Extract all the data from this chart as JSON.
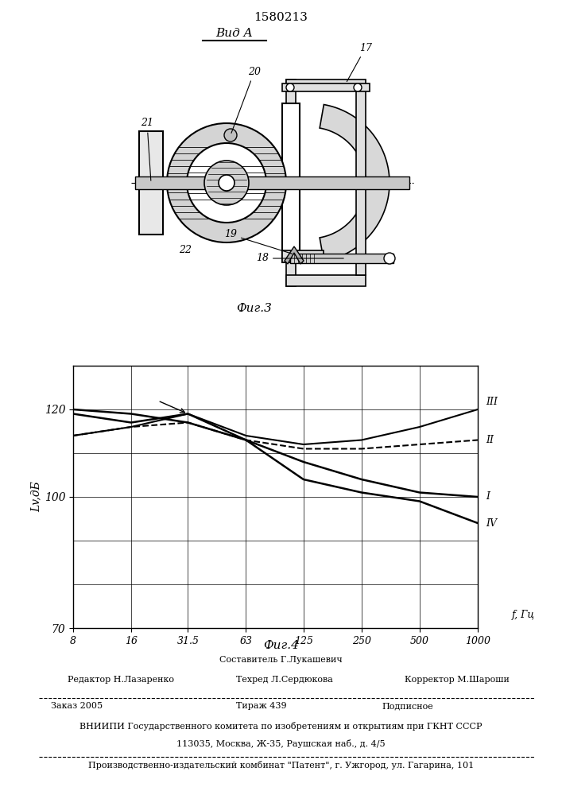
{
  "patent_number": "1580213",
  "fig3_label": "Фиг.3",
  "fig4_label": "Фиг.4",
  "vid_a_label": "Вид A",
  "ylabel": "Lv,дБ",
  "xlabel": "f, Гц",
  "xticks": [
    8,
    16,
    31.5,
    63,
    125,
    250,
    500,
    1000
  ],
  "xtick_labels": [
    "8",
    "16",
    "31.5",
    "63",
    "125",
    "250",
    "500",
    "1000"
  ],
  "ylim": [
    70,
    130
  ],
  "yticks": [
    70,
    100,
    120
  ],
  "curve_I_x": [
    8,
    16,
    31.5,
    63,
    125,
    250,
    500,
    1000
  ],
  "curve_I_y": [
    120,
    119,
    117,
    113,
    108,
    104,
    101,
    100
  ],
  "curve_II_x": [
    8,
    16,
    31.5,
    63,
    125,
    250,
    500,
    1000
  ],
  "curve_II_y": [
    114,
    116,
    117,
    113,
    111,
    111,
    112,
    113
  ],
  "curve_III_x": [
    8,
    16,
    31.5,
    63,
    125,
    250,
    500,
    1000
  ],
  "curve_III_y": [
    114,
    116,
    119,
    114,
    112,
    113,
    116,
    120
  ],
  "curve_IV_x": [
    8,
    16,
    31.5,
    63,
    125,
    250,
    500,
    1000
  ],
  "curve_IV_y": [
    119,
    117,
    119,
    113,
    104,
    101,
    99,
    94
  ],
  "footer_col1_lines": [
    "Редактор Н.Лазаренко"
  ],
  "footer_col2_lines": [
    "Составитель Г.Лукашевич",
    "Техред Л.Сердюкова"
  ],
  "footer_col3_lines": [
    "Корректор М.Шароши"
  ],
  "footer_order": "Заказ 2005",
  "footer_tirazh": "Тираж 439",
  "footer_podp": "Подписное",
  "footer_vniip": "ВНИИПИ Государственного комитета по изобретениям и открытиям при ГКНТ СССР",
  "footer_addr": "113035, Москва, Ж-35, Раушская наб., д. 4/5",
  "footer_patent": "Производственно-издательский комбинат \"Патент\", г. Ужгород, ул. Гагарина, 101"
}
